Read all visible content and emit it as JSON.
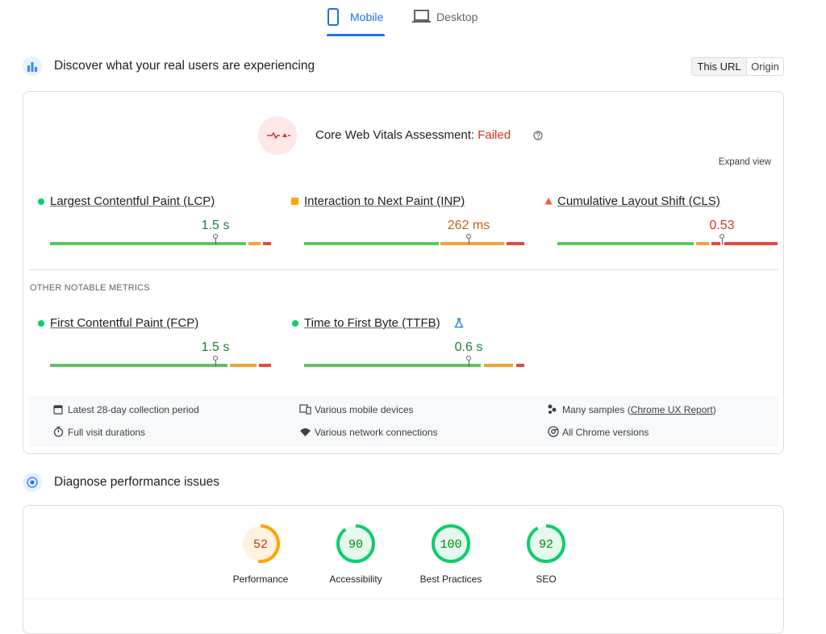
{
  "tabs": [
    "Mobile",
    "Desktop"
  ],
  "field": {
    "title": "Discover what your real users are experiencing",
    "toggle": [
      "This URL",
      "Origin"
    ],
    "assessment": {
      "label": "Core Web Vitals Assessment:",
      "status": "Failed"
    },
    "expand": "Expand view",
    "core_metrics": [
      {
        "name": "Largest Contentful Paint (LCP)",
        "value": "1.5 s"
      },
      {
        "name": "Interaction to Next Paint (INP)",
        "value": "262 ms"
      },
      {
        "name": "Cumulative Layout Shift (CLS)",
        "value": "0.53"
      }
    ],
    "other_heading": "OTHER NOTABLE METRICS",
    "other_metrics": [
      {
        "name": "First Contentful Paint (FCP)",
        "value": "1.5 s"
      },
      {
        "name": "Time to First Byte (TTFB)",
        "value": "0.6 s"
      }
    ],
    "notes": {
      "period": "Latest 28-day collection period",
      "devices": "Various mobile devices",
      "samples_prefix": "Many samples (",
      "samples_link": "Chrome UX Report",
      "samples_suffix": ")",
      "durations": "Full visit durations",
      "network": "Various network connections",
      "versions": "All Chrome versions"
    }
  },
  "lab": {
    "title": "Diagnose performance issues",
    "scores": [
      {
        "label": "Performance",
        "score": 52
      },
      {
        "label": "Accessibility",
        "score": 90
      },
      {
        "label": "Best Practices",
        "score": 100
      },
      {
        "label": "SEO",
        "score": 92
      }
    ]
  }
}
